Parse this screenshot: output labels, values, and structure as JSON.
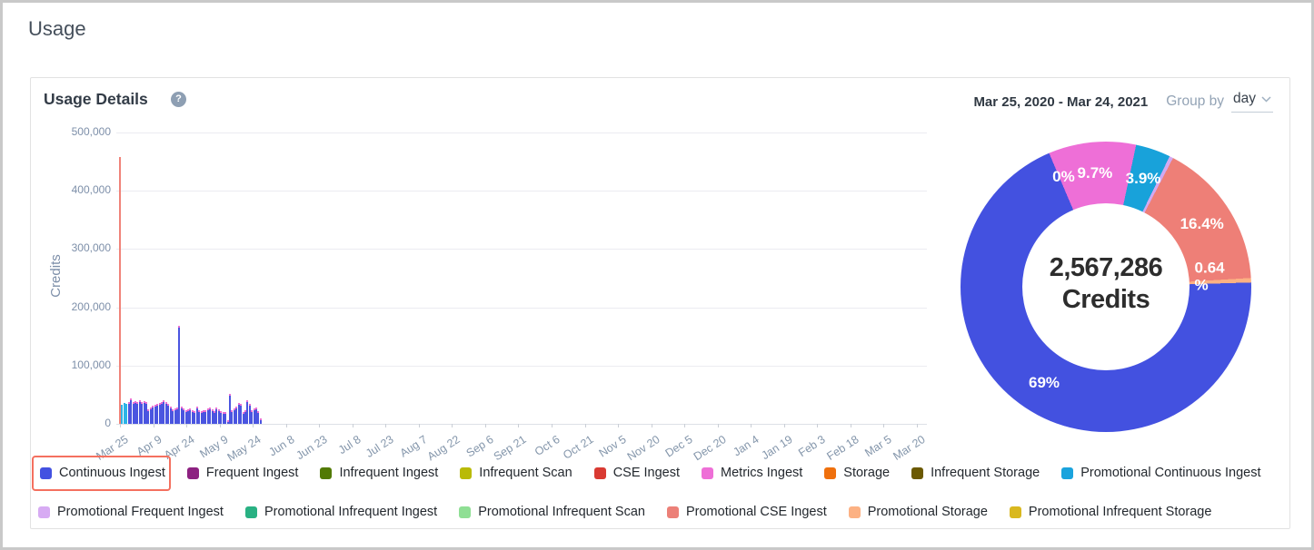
{
  "page": {
    "title": "Usage"
  },
  "card": {
    "title": "Usage Details",
    "help_icon_glyph": "?",
    "date_range": "Mar 25, 2020 - Mar 24, 2021",
    "group_by_label": "Group by",
    "group_by_value": "day"
  },
  "chart_data": [
    {
      "type": "bar",
      "ylabel": "Credits",
      "ylim": [
        0,
        500000
      ],
      "grid": true,
      "ytick_labels": [
        "500,000",
        "400,000",
        "300,000",
        "200,000",
        "100,000",
        "0"
      ],
      "xtick_labels": [
        "Mar 25",
        "Apr 9",
        "Apr 24",
        "May 9",
        "May 24",
        "Jun 8",
        "Jun 23",
        "Jul 8",
        "Jul 23",
        "Aug 7",
        "Aug 22",
        "Sep 6",
        "Sep 21",
        "Oct 6",
        "Oct 21",
        "Nov 5",
        "Nov 20",
        "Dec 5",
        "Dec 20",
        "Jan 4",
        "Jan 19",
        "Feb 3",
        "Feb 18",
        "Mar 5",
        "Mar 20"
      ],
      "series_runs": [
        [
          "promotional-cse-ingest",
          1
        ],
        [
          "promotional-continuous-ingest",
          3
        ],
        [
          "continuous-ingest",
          61
        ]
      ],
      "series_styles": {
        "promotional-cse-ingest": {
          "color": "#f08379"
        },
        "promotional-continuous-ingest": {
          "color": "#2cb4e6"
        },
        "continuous-ingest": {
          "color": "#4a55e0",
          "tip_color": "#e96fd4"
        }
      },
      "values": [
        458000,
        33000,
        36000,
        34000,
        38000,
        44000,
        37000,
        39000,
        38000,
        40000,
        38000,
        39000,
        37000,
        25000,
        28000,
        31000,
        33000,
        34000,
        36000,
        38000,
        40000,
        37000,
        34000,
        30000,
        25000,
        26000,
        28000,
        168000,
        30000,
        26000,
        24000,
        25000,
        26000,
        24000,
        22000,
        30000,
        24000,
        22000,
        24000,
        24000,
        26000,
        28000,
        25000,
        22000,
        28000,
        25000,
        22000,
        20000,
        20000,
        6000,
        52000,
        24000,
        26000,
        30000,
        36000,
        34000,
        20000,
        24000,
        40000,
        34000,
        24000,
        26000,
        28000,
        22000,
        10000
      ]
    },
    {
      "type": "donut",
      "center_value": "2,567,286",
      "center_label": "Credits",
      "start_angle": 337,
      "slices": [
        {
          "name": "zero-percent-group",
          "label": "0%",
          "value_pct": 0,
          "color": "#4351e0",
          "sweep": 0,
          "label_angle": 339,
          "label_r": 130
        },
        {
          "name": "Metrics Ingest",
          "label": "9.7%",
          "value_pct": 9.7,
          "color": "#ee6fd7",
          "sweep": 35
        },
        {
          "name": "Promotional Continuous Ingest",
          "label": "3.9%",
          "value_pct": 3.9,
          "color": "#18a2da",
          "sweep": 14
        },
        {
          "name": "Promotional Frequent Ingest",
          "label": "",
          "value_pct": 0,
          "color": "#d2a9f1",
          "sweep": 1.5
        },
        {
          "name": "Promotional CSE Ingest",
          "label": "16.4%",
          "value_pct": 16.4,
          "color": "#ee7f77",
          "sweep": 59
        },
        {
          "name": "Promotional Storage",
          "label": "0.64 %",
          "value_pct": 0.64,
          "color": "#fcb183",
          "sweep": 1.8,
          "label_angle": 85,
          "label_r": 122,
          "wrap": true
        },
        {
          "name": "Continuous Ingest",
          "label": "69%",
          "value_pct": 69,
          "color": "#4351e0",
          "sweep": 248.7
        }
      ]
    }
  ],
  "legend": {
    "rows": [
      [
        {
          "label": "Continuous Ingest",
          "color": "#4351e1",
          "highlighted": true
        },
        {
          "label": "Frequent Ingest",
          "color": "#8d2181"
        },
        {
          "label": "Infrequent Ingest",
          "color": "#527a04"
        },
        {
          "label": "Infrequent Scan",
          "color": "#b9ba06"
        },
        {
          "label": "CSE Ingest",
          "color": "#d93a32"
        },
        {
          "label": "Metrics Ingest",
          "color": "#ee6fd7"
        },
        {
          "label": "Storage",
          "color": "#ef700d"
        },
        {
          "label": "Infrequent Storage",
          "color": "#6b5902"
        },
        {
          "label": "Promotional Continuous Ingest",
          "color": "#1aa3dd"
        }
      ],
      [
        {
          "label": "Promotional Frequent Ingest",
          "color": "#d7abf3"
        },
        {
          "label": "Promotional Infrequent Ingest",
          "color": "#29b183"
        },
        {
          "label": "Promotional Infrequent Scan",
          "color": "#8fdf94"
        },
        {
          "label": "Promotional CSE Ingest",
          "color": "#ec8078"
        },
        {
          "label": "Promotional Storage",
          "color": "#fcb183"
        },
        {
          "label": "Promotional Infrequent Storage",
          "color": "#d9b81f"
        }
      ]
    ]
  }
}
